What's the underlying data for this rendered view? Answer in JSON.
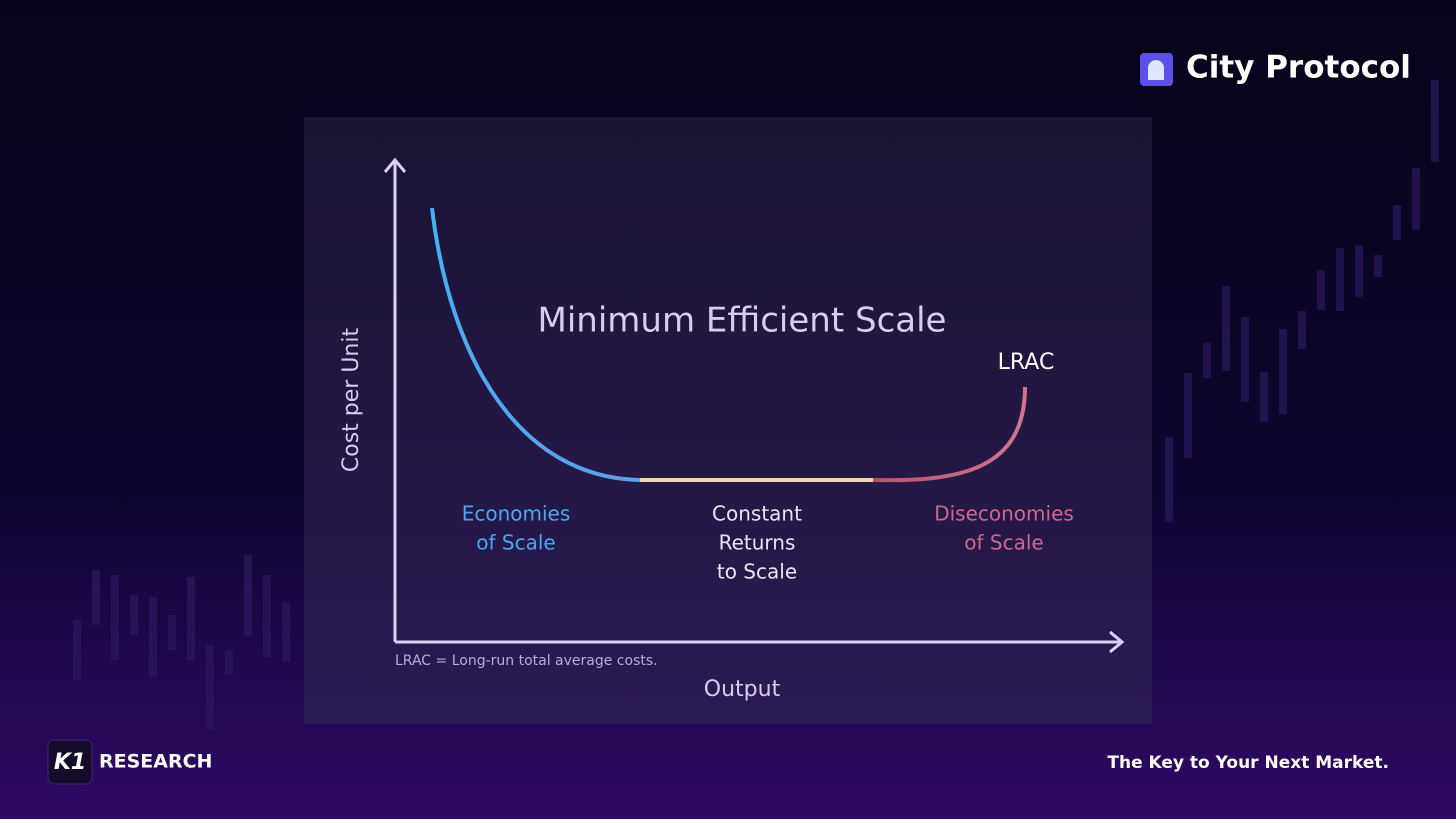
{
  "brand": {
    "name": "City Protocol"
  },
  "diagram": {
    "title": "Minimum Efficient Scale",
    "curve_label": "LRAC",
    "y_axis_label": "Cost per Unit",
    "x_axis_label": "Output",
    "regions": [
      {
        "lines": [
          "Economies",
          "of Scale"
        ]
      },
      {
        "lines": [
          "Constant",
          "Returns",
          "to Scale"
        ]
      },
      {
        "lines": [
          "Diseconomies",
          "of Scale"
        ]
      }
    ],
    "note": "LRAC = Long-run total average costs."
  },
  "footer": {
    "logo": "K1",
    "label": "RESEARCH",
    "tagline": "The Key to Your Next Market."
  }
}
